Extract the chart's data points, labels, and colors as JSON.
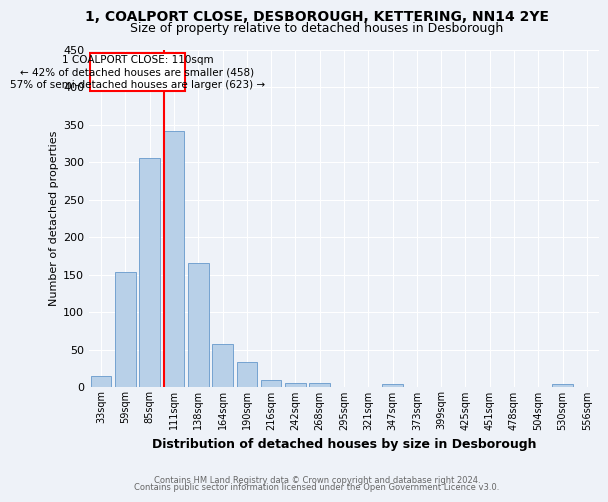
{
  "title": "1, COALPORT CLOSE, DESBOROUGH, KETTERING, NN14 2YE",
  "subtitle": "Size of property relative to detached houses in Desborough",
  "xlabel": "Distribution of detached houses by size in Desborough",
  "ylabel": "Number of detached properties",
  "bar_labels": [
    "33sqm",
    "59sqm",
    "85sqm",
    "111sqm",
    "138sqm",
    "164sqm",
    "190sqm",
    "216sqm",
    "242sqm",
    "268sqm",
    "295sqm",
    "321sqm",
    "347sqm",
    "373sqm",
    "399sqm",
    "425sqm",
    "451sqm",
    "478sqm",
    "504sqm",
    "530sqm",
    "556sqm"
  ],
  "bar_values": [
    15,
    153,
    305,
    342,
    165,
    57,
    33,
    9,
    6,
    5,
    0,
    0,
    4,
    0,
    0,
    0,
    0,
    0,
    0,
    4,
    0
  ],
  "bar_color": "#b8d0e8",
  "bar_edge_color": "#6699cc",
  "ylim": [
    0,
    450
  ],
  "red_line_index": 3,
  "annotation_line1": "1 COALPORT CLOSE: 110sqm",
  "annotation_line2": "← 42% of detached houses are smaller (458)",
  "annotation_line3": "57% of semi-detached houses are larger (623) →",
  "footer_line1": "Contains HM Land Registry data © Crown copyright and database right 2024.",
  "footer_line2": "Contains public sector information licensed under the Open Government Licence v3.0.",
  "background_color": "#eef2f8",
  "grid_color": "#ffffff",
  "title_fontsize": 10,
  "subtitle_fontsize": 9,
  "tick_fontsize": 7,
  "ylabel_fontsize": 8,
  "xlabel_fontsize": 9
}
